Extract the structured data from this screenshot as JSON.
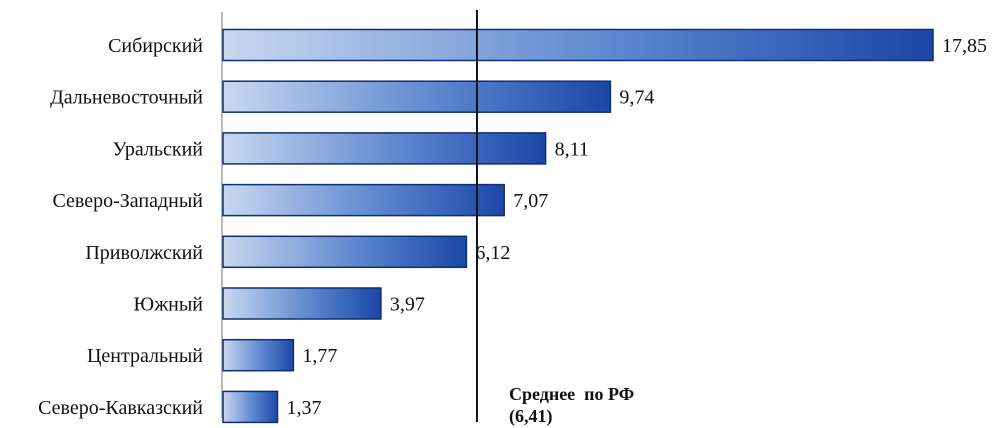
{
  "chart_data": {
    "type": "bar",
    "orientation": "horizontal",
    "categories": [
      "Сибирский",
      "Дальневосточный",
      "Уральский",
      "Северо-Западный",
      "Приволжский",
      "Южный",
      "Центральный",
      "Северо-Кавказский"
    ],
    "values": [
      17.85,
      9.74,
      8.11,
      7.07,
      6.12,
      3.97,
      1.77,
      1.37
    ],
    "value_labels": [
      "17,85",
      "9,74",
      "8,11",
      "7,07",
      "6,12",
      "3,97",
      "1,77",
      "1,37"
    ],
    "xlim": [
      0,
      17.85
    ],
    "grid": false,
    "reference_line": {
      "value": 6.41,
      "label_line1": "Среднее  по РФ",
      "label_line2": "(6,41)"
    },
    "colors": {
      "bar_light": "#c9d8f0",
      "bar_mid": "#5d87cf",
      "bar_dark": "#1a47a8",
      "bar_border": "#0f2f74",
      "axis": "#b8b8b8",
      "reference_line": "#111111"
    }
  }
}
